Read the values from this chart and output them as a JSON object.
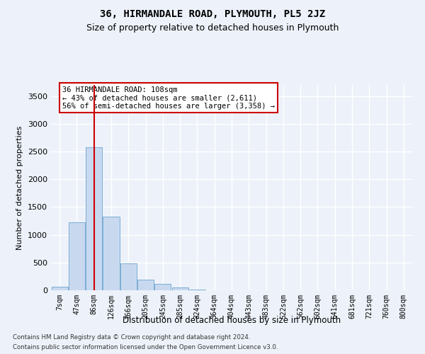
{
  "title": "36, HIRMANDALE ROAD, PLYMOUTH, PL5 2JZ",
  "subtitle": "Size of property relative to detached houses in Plymouth",
  "xlabel": "Distribution of detached houses by size in Plymouth",
  "ylabel": "Number of detached properties",
  "bar_color": "#c8d9ef",
  "bar_edge_color": "#7aadd4",
  "categories": [
    "7sqm",
    "47sqm",
    "86sqm",
    "126sqm",
    "166sqm",
    "205sqm",
    "245sqm",
    "285sqm",
    "324sqm",
    "364sqm",
    "404sqm",
    "443sqm",
    "483sqm",
    "522sqm",
    "562sqm",
    "602sqm",
    "641sqm",
    "681sqm",
    "721sqm",
    "760sqm",
    "800sqm"
  ],
  "values": [
    60,
    1220,
    2580,
    1330,
    490,
    195,
    120,
    55,
    15,
    5,
    0,
    0,
    0,
    0,
    0,
    0,
    0,
    0,
    0,
    0,
    0
  ],
  "ylim": [
    0,
    3700
  ],
  "yticks": [
    0,
    500,
    1000,
    1500,
    2000,
    2500,
    3000,
    3500
  ],
  "vline_x": 2,
  "vline_color": "#cc0000",
  "annotation_text": "36 HIRMANDALE ROAD: 108sqm\n← 43% of detached houses are smaller (2,611)\n56% of semi-detached houses are larger (3,358) →",
  "annotation_box_color": "#ffffff",
  "annotation_box_edge": "#cc0000",
  "footer_line1": "Contains HM Land Registry data © Crown copyright and database right 2024.",
  "footer_line2": "Contains public sector information licensed under the Open Government Licence v3.0.",
  "background_color": "#edf2fa",
  "plot_bg_color": "#edf2fa",
  "grid_color": "#ffffff",
  "title_fontsize": 10,
  "subtitle_fontsize": 9
}
